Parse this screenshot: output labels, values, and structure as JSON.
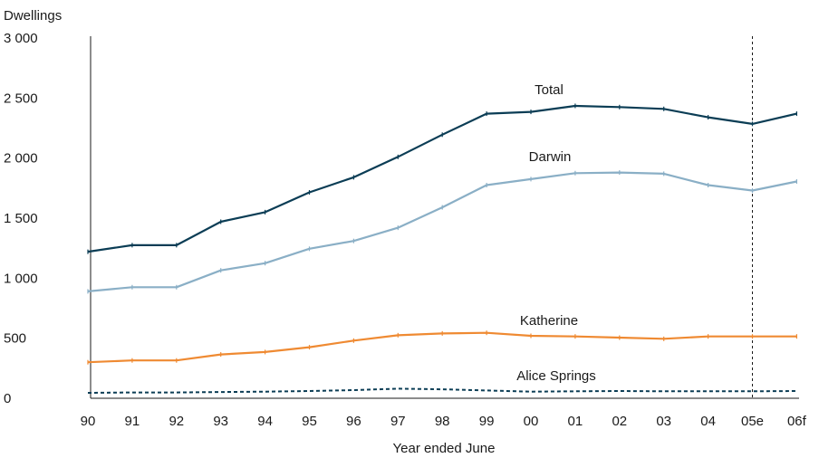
{
  "chart_data": {
    "type": "line",
    "ylabel": "Dwellings",
    "xlabel": "Year ended June",
    "ylim": [
      0,
      3000
    ],
    "yticks": [
      0,
      500,
      1000,
      1500,
      2000,
      2500,
      3000
    ],
    "ytick_labels": [
      "0",
      "500",
      "1 000",
      "1 500",
      "2 000",
      "2 500",
      "3 000"
    ],
    "categories": [
      "90",
      "91",
      "92",
      "93",
      "94",
      "95",
      "96",
      "97",
      "98",
      "99",
      "00",
      "01",
      "02",
      "03",
      "04",
      "05e",
      "06f"
    ],
    "reference_line_category": "05e",
    "grid": false,
    "series": [
      {
        "name": "Total",
        "color": "#0b3d55",
        "dashed": false,
        "values": [
          1220,
          1275,
          1275,
          1470,
          1550,
          1715,
          1840,
          2010,
          2195,
          2370,
          2385,
          2435,
          2425,
          2410,
          2340,
          2285,
          2370
        ]
      },
      {
        "name": "Darwin",
        "color": "#8aafc6",
        "dashed": false,
        "values": [
          890,
          925,
          925,
          1065,
          1125,
          1245,
          1310,
          1420,
          1590,
          1775,
          1825,
          1875,
          1880,
          1870,
          1775,
          1730,
          1805
        ]
      },
      {
        "name": "Katherine",
        "color": "#ef8a32",
        "dashed": false,
        "values": [
          300,
          315,
          315,
          365,
          385,
          425,
          480,
          525,
          540,
          545,
          520,
          515,
          505,
          495,
          515,
          515,
          515
        ]
      },
      {
        "name": "Alice Springs",
        "color": "#0b3d55",
        "dashed": true,
        "values": [
          45,
          48,
          48,
          52,
          55,
          60,
          68,
          80,
          75,
          65,
          55,
          58,
          60,
          58,
          58,
          58,
          60
        ]
      }
    ]
  }
}
